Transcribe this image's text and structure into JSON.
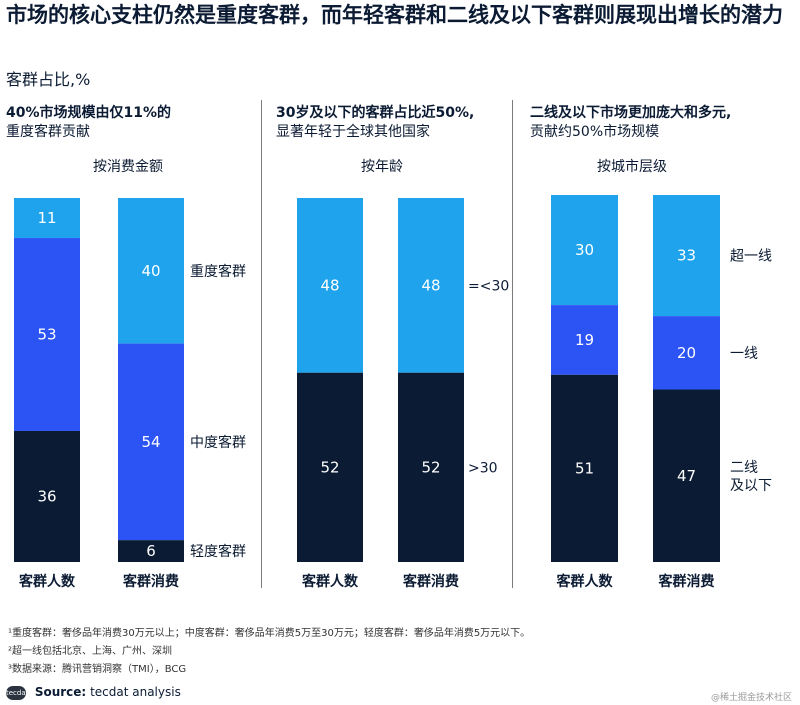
{
  "title": "市场的核心支柱仍然是重度客群，而年轻客群和二线及以下客群则展现出增长的潜力",
  "subtitle": "客群占比,%",
  "panels": [
    {
      "note_bold": "40%市场规模由仅11%的",
      "note_rest": "重度客群贡献",
      "dimension": "按消费金额",
      "legend": [
        "重度客群",
        "中度客群",
        "轻度客群"
      ]
    },
    {
      "note_bold": "30岁及以下的客群占比近50%,",
      "note_rest": "显著年轻于全球其他国家",
      "dimension": "按年龄",
      "legend": [
        "=<30",
        ">30"
      ]
    },
    {
      "note_bold": "二线及以下市场更加庞大和多元,",
      "note_rest": "贡献约50%市场规模",
      "dimension": "按城市层级",
      "legend": [
        "超一线",
        "一线",
        "二线\n及以下"
      ]
    }
  ],
  "chart_data": [
    {
      "type": "bar",
      "stacked": true,
      "categories": [
        "客群人数",
        "客群消费"
      ],
      "series": [
        {
          "name": "重度客群",
          "values": [
            11,
            40
          ],
          "color": "#1fa3ec"
        },
        {
          "name": "中度客群",
          "values": [
            53,
            54
          ],
          "color": "#2c54f5"
        },
        {
          "name": "轻度客群",
          "values": [
            36,
            6
          ],
          "color": "#0b1b33"
        }
      ]
    },
    {
      "type": "bar",
      "stacked": true,
      "categories": [
        "客群人数",
        "客群消费"
      ],
      "series": [
        {
          "name": "=<30",
          "values": [
            48,
            48
          ],
          "color": "#1fa3ec"
        },
        {
          "name": ">30",
          "values": [
            52,
            52
          ],
          "color": "#0b1b33"
        }
      ]
    },
    {
      "type": "bar",
      "stacked": true,
      "categories": [
        "客群人数",
        "客群消费"
      ],
      "series": [
        {
          "name": "超一线",
          "values": [
            30,
            33
          ],
          "color": "#1fa3ec"
        },
        {
          "name": "一线",
          "values": [
            19,
            20
          ],
          "color": "#2c54f5"
        },
        {
          "name": "二线及以下",
          "values": [
            51,
            47
          ],
          "color": "#0b1b33"
        }
      ]
    }
  ],
  "footnotes": [
    "¹重度客群：奢侈品年消费30万元以上；中度客群：奢侈品年消费5万至30万元；轻度客群：奢侈品年消费5万元以下。",
    "²超一线包括北京、上海、广州、深圳",
    "³数据来源：腾讯营销洞察（TMI），BCG"
  ],
  "source": {
    "logo_text": "tecdat",
    "label": "Source:",
    "text": "tecdat analysis"
  },
  "watermark": "@稀土掘金技术社区"
}
